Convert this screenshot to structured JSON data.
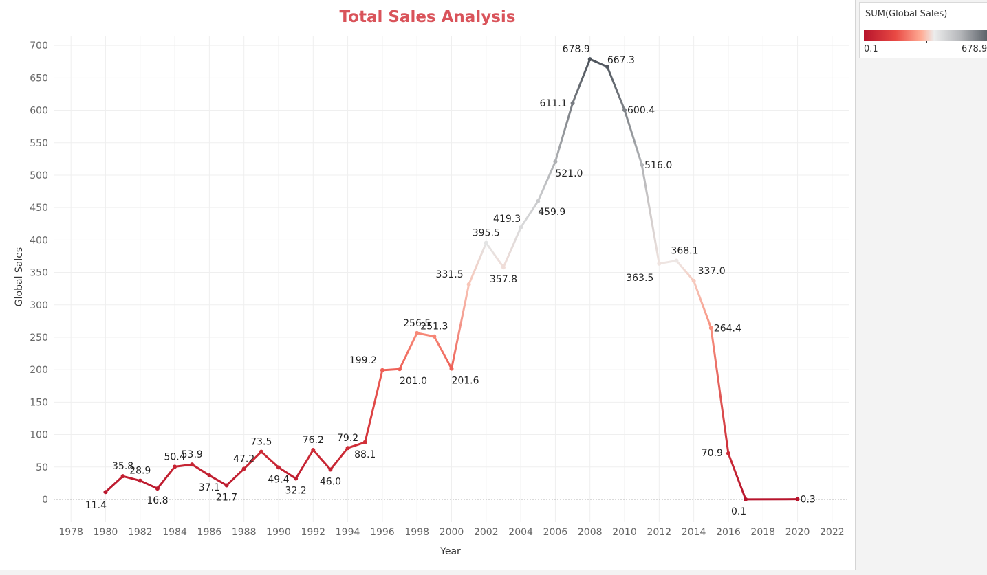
{
  "legend": {
    "title": "SUM(Global Sales)",
    "min_label": "0.1",
    "max_label": "678.9",
    "colors": [
      "#b7142c",
      "#e94a44",
      "#ffad96",
      "#ececec",
      "#b6b8bb",
      "#4d535b"
    ]
  },
  "chart_data": {
    "type": "line",
    "title": "Total Sales Analysis",
    "xlabel": "Year",
    "ylabel": "Global Sales",
    "xlim": [
      1977,
      2023
    ],
    "ylim": [
      -35,
      715
    ],
    "x_ticks": [
      1978,
      1980,
      1982,
      1984,
      1986,
      1988,
      1990,
      1992,
      1994,
      1996,
      1998,
      2000,
      2002,
      2004,
      2006,
      2008,
      2010,
      2012,
      2014,
      2016,
      2018,
      2020,
      2022
    ],
    "y_ticks": [
      0,
      50,
      100,
      150,
      200,
      250,
      300,
      350,
      400,
      450,
      500,
      550,
      600,
      650,
      700
    ],
    "grid": true,
    "color_by": "SUM(Global Sales)",
    "color_range": [
      0.1,
      678.9
    ],
    "series": [
      {
        "x": [
          1980,
          1981,
          1982,
          1983,
          1984,
          1985,
          1986,
          1987,
          1988,
          1989,
          1990,
          1991,
          1992,
          1993,
          1994,
          1995,
          1996,
          1997,
          1998,
          1999,
          2000,
          2001,
          2002,
          2003,
          2004,
          2005,
          2006,
          2007,
          2008,
          2009,
          2010,
          2011,
          2012,
          2013,
          2014,
          2015,
          2016,
          2017,
          2020
        ],
        "y": [
          11.4,
          35.8,
          28.9,
          16.8,
          50.4,
          53.9,
          37.1,
          21.7,
          47.2,
          73.5,
          49.4,
          32.2,
          76.2,
          46.0,
          79.2,
          88.1,
          199.2,
          201.0,
          256.5,
          251.3,
          201.6,
          331.5,
          395.5,
          357.8,
          419.3,
          459.9,
          521.0,
          611.1,
          678.9,
          667.3,
          600.4,
          516.0,
          363.5,
          368.1,
          337.0,
          264.4,
          70.9,
          0.1,
          0.3
        ],
        "labels": [
          "11.4",
          "35.8",
          "28.9",
          "16.8",
          "50.4",
          "53.9",
          "37.1",
          "21.7",
          "47.2",
          "73.5",
          "49.4",
          "32.2",
          "76.2",
          "46.0",
          "79.2",
          "88.1",
          "199.2",
          "201.0",
          "256.5",
          "251.3",
          "201.6",
          "331.5",
          "395.5",
          "357.8",
          "419.3",
          "459.9",
          "521.0",
          "611.1",
          "678.9",
          "667.3",
          "600.4",
          "516.0",
          "363.5",
          "368.1",
          "337.0",
          "264.4",
          "70.9",
          "0.1",
          "0.3"
        ]
      }
    ]
  }
}
